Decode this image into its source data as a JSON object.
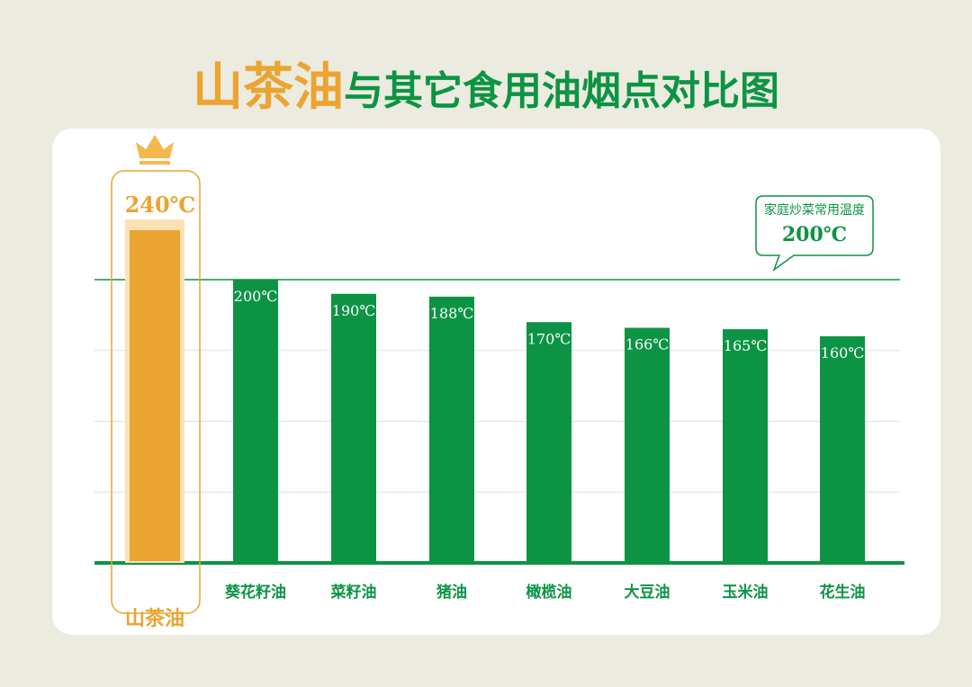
{
  "title": {
    "highlight": "山茶油",
    "rest": "与其它食用油烟点对比图"
  },
  "callout": {
    "label": "家庭炒菜常用温度",
    "value": "200℃"
  },
  "colors": {
    "featured": "#eba431",
    "featured_light": "#fbe1b5",
    "bars": "#0c9444",
    "grid": "#d6e6d8",
    "background": "#ecebdf"
  },
  "icons": {
    "featured_badge": "crown-icon"
  },
  "chart_data": {
    "type": "bar",
    "title": "山茶油与其它食用油烟点对比图",
    "categories": [
      "山茶油",
      "葵花籽油",
      "菜籽油",
      "猪油",
      "橄榄油",
      "大豆油",
      "玉米油",
      "花生油"
    ],
    "values": [
      240,
      200,
      190,
      188,
      170,
      166,
      165,
      160
    ],
    "value_labels": [
      "240℃",
      "200℃",
      "190℃",
      "188℃",
      "170℃",
      "166℃",
      "165℃",
      "160℃"
    ],
    "unit": "℃",
    "featured_index": 0,
    "reference_line": {
      "value": 200,
      "label": "家庭炒菜常用温度",
      "value_label": "200℃"
    },
    "ylim": [
      0,
      200
    ],
    "grid": true,
    "legend": "none"
  }
}
